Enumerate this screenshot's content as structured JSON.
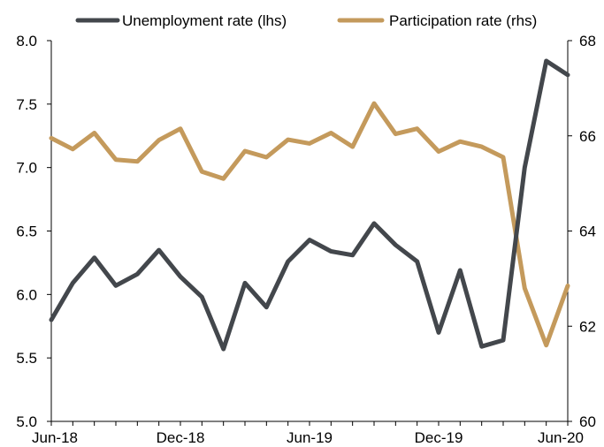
{
  "chart_data": {
    "type": "line",
    "x": [
      "Jun-18",
      "Jul-18",
      "Aug-18",
      "Sep-18",
      "Oct-18",
      "Nov-18",
      "Dec-18",
      "Jan-19",
      "Feb-19",
      "Mar-19",
      "Apr-19",
      "May-19",
      "Jun-19",
      "Jul-19",
      "Aug-19",
      "Sep-19",
      "Oct-19",
      "Nov-19",
      "Dec-19",
      "Jan-20",
      "Feb-20",
      "Mar-20",
      "Apr-20",
      "May-20",
      "Jun-20"
    ],
    "x_tick_labels": [
      "Jun-18",
      "Dec-18",
      "Jun-19",
      "Dec-19",
      "Jun-20"
    ],
    "series": [
      {
        "name": "Unemployment rate (lhs)",
        "axis": "left",
        "color": "#43474c",
        "values": [
          5.8,
          6.09,
          6.29,
          6.07,
          6.16,
          6.35,
          6.14,
          5.98,
          5.57,
          6.09,
          5.9,
          6.26,
          6.43,
          6.34,
          6.31,
          6.56,
          6.39,
          6.26,
          5.7,
          6.19,
          5.59,
          5.64,
          7.0,
          7.84,
          7.73
        ]
      },
      {
        "name": "Participation rate (rhs)",
        "axis": "right",
        "color": "#c49a5c",
        "values": [
          65.95,
          65.72,
          66.06,
          65.5,
          65.46,
          65.91,
          66.15,
          65.25,
          65.1,
          65.68,
          65.55,
          65.92,
          65.84,
          66.06,
          65.77,
          66.68,
          66.04,
          66.15,
          65.67,
          65.88,
          65.77,
          65.55,
          62.8,
          61.6,
          62.85
        ]
      }
    ],
    "y_left": {
      "lim": [
        5.0,
        8.0
      ],
      "ticks": [
        "5.0",
        "5.5",
        "6.0",
        "6.5",
        "7.0",
        "7.5",
        "8.0"
      ]
    },
    "y_right": {
      "lim": [
        60,
        68
      ],
      "ticks": [
        "60",
        "62",
        "64",
        "66",
        "68"
      ]
    },
    "grid": false,
    "legend": "top"
  }
}
